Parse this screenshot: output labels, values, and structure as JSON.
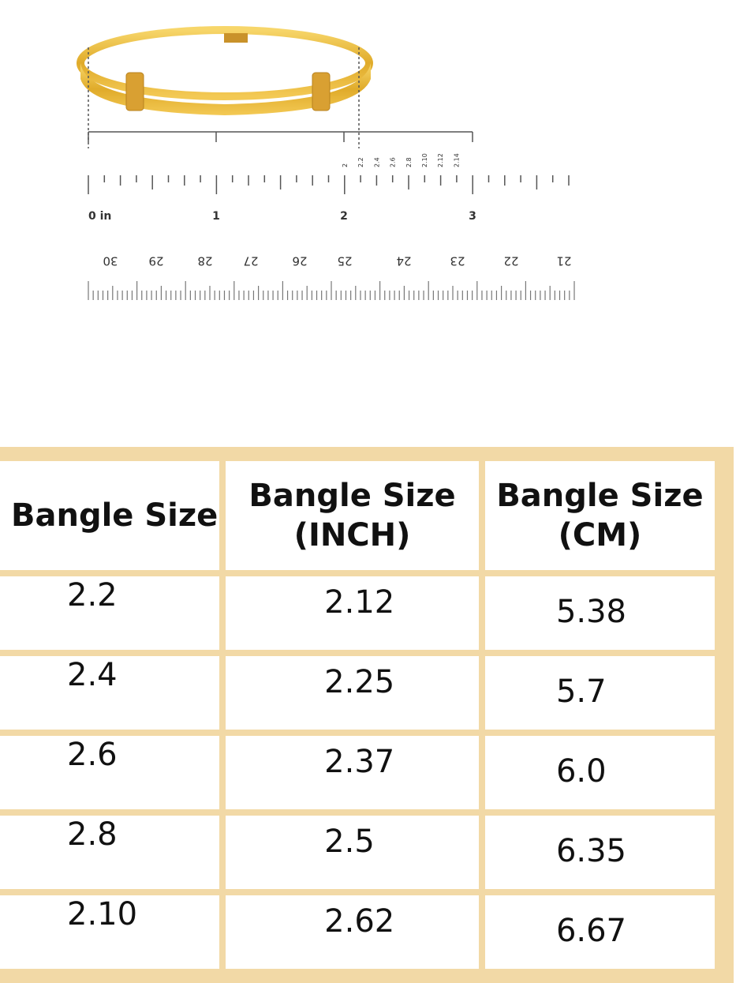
{
  "ruler": {
    "inch_labels": [
      "0 in",
      "1",
      "2",
      "3"
    ],
    "size_labels": [
      "2",
      "2.2",
      "2.4",
      "2.6",
      "2.8",
      "2.10",
      "2.12",
      "2.14"
    ],
    "cm_labels": [
      "30",
      "29",
      "28",
      "27",
      "26",
      "25",
      "24",
      "23",
      "22",
      "21"
    ]
  },
  "table": {
    "header": [
      "Bangle Size",
      "Bangle Size (INCH)",
      "Bangle Size (CM)"
    ],
    "rows": [
      [
        "2.2",
        "2.12",
        "5.38"
      ],
      [
        "2.4",
        "2.25",
        "5.7"
      ],
      [
        "2.6",
        "2.37",
        "6.0"
      ],
      [
        "2.8",
        "2.5",
        "6.35"
      ],
      [
        "2.10",
        "2.62",
        "6.67"
      ]
    ]
  }
}
